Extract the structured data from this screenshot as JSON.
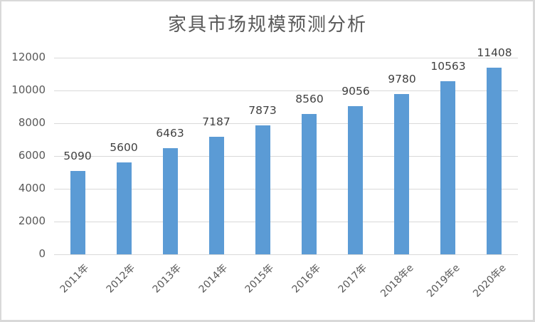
{
  "chart_data": {
    "type": "bar",
    "title": "家具市场规模预测分析",
    "xlabel": "",
    "ylabel": "",
    "categories": [
      "2011年",
      "2012年",
      "2013年",
      "2014年",
      "2015年",
      "2016年",
      "2017年",
      "2018年e",
      "2019年e",
      "2020年e"
    ],
    "values": [
      5090,
      5600,
      6463,
      7187,
      7873,
      8560,
      9056,
      9780,
      10563,
      11408
    ],
    "ylim": [
      0,
      12000
    ],
    "yticks": [
      0,
      2000,
      4000,
      6000,
      8000,
      10000,
      12000
    ],
    "grid": true,
    "legend": "none",
    "data_labels": true,
    "bar_color": "#5b9bd5"
  },
  "colors": {
    "bar": "#5b9bd5",
    "grid": "#d9d9d9",
    "text": "#595959",
    "border": "#d9d9d9"
  }
}
